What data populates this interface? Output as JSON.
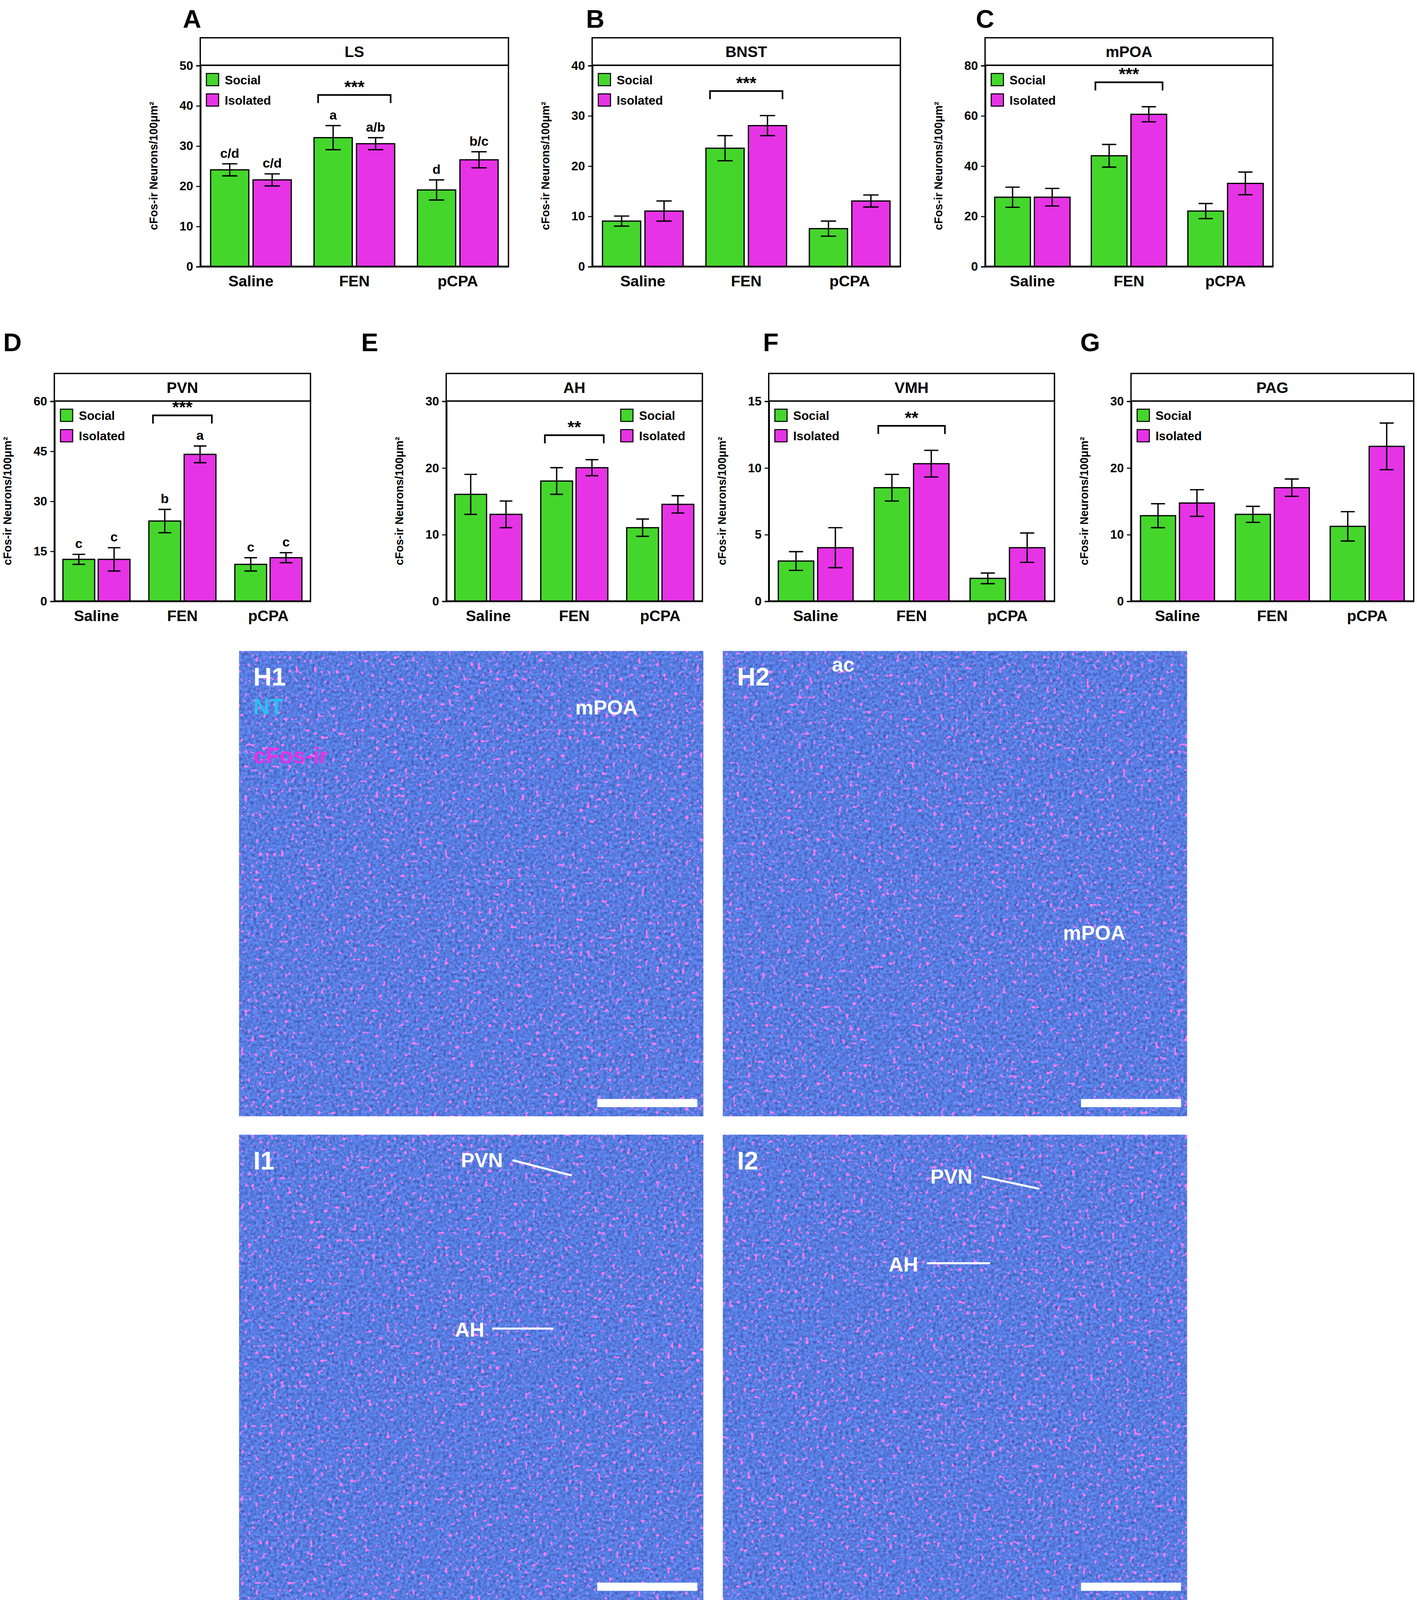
{
  "chart_data": [
    {
      "type": "bar",
      "panel": "A",
      "title": "LS",
      "y_label": "cFos-ir Neurons/100μm²",
      "categories": [
        "Saline",
        "FEN",
        "pCPA"
      ],
      "ylim": [
        0,
        50
      ],
      "yticks": [
        0,
        10,
        20,
        30,
        40,
        50
      ],
      "legend": "upper left",
      "series": [
        {
          "name": "Social",
          "color": "#45d62c",
          "values": [
            24,
            32,
            19
          ],
          "errors": [
            1.5,
            3,
            2.5
          ],
          "letters": [
            "c/d",
            "a",
            "d"
          ]
        },
        {
          "name": "Isolated",
          "color": "#e733e6",
          "values": [
            21.5,
            30.5,
            26.5
          ],
          "errors": [
            1.5,
            1.5,
            2
          ],
          "letters": [
            "c/d",
            "a/b",
            "b/c"
          ]
        }
      ],
      "annotations": [
        {
          "text": "***",
          "category": "FEN"
        }
      ]
    },
    {
      "type": "bar",
      "panel": "B",
      "title": "BNST",
      "y_label": "cFos-ir Neurons/100μm²",
      "categories": [
        "Saline",
        "FEN",
        "pCPA"
      ],
      "ylim": [
        0,
        40
      ],
      "yticks": [
        0,
        10,
        20,
        30,
        40
      ],
      "legend": "upper left",
      "series": [
        {
          "name": "Social",
          "color": "#45d62c",
          "values": [
            9,
            23.5,
            7.5
          ],
          "errors": [
            1,
            2.5,
            1.5
          ]
        },
        {
          "name": "Isolated",
          "color": "#e733e6",
          "values": [
            11,
            28,
            13
          ],
          "errors": [
            2,
            2,
            1.2
          ]
        }
      ],
      "annotations": [
        {
          "text": "***",
          "category": "FEN"
        }
      ]
    },
    {
      "type": "bar",
      "panel": "C",
      "title": "mPOA",
      "y_label": "cFos-ir Neurons/100μm²",
      "categories": [
        "Saline",
        "FEN",
        "pCPA"
      ],
      "ylim": [
        0,
        80
      ],
      "yticks": [
        0,
        20,
        40,
        60,
        80
      ],
      "legend": "upper left",
      "series": [
        {
          "name": "Social",
          "color": "#45d62c",
          "values": [
            27.5,
            44,
            22
          ],
          "errors": [
            4,
            4.5,
            3
          ]
        },
        {
          "name": "Isolated",
          "color": "#e733e6",
          "values": [
            27.5,
            60.5,
            33
          ],
          "errors": [
            3.5,
            3,
            4.5
          ]
        }
      ],
      "annotations": [
        {
          "text": "***",
          "category": "FEN"
        }
      ]
    },
    {
      "type": "bar",
      "panel": "D",
      "title": "PVN",
      "y_label": "cFos-ir Neurons/100μm²",
      "categories": [
        "Saline",
        "FEN",
        "pCPA"
      ],
      "ylim": [
        0,
        60
      ],
      "yticks": [
        0,
        15,
        30,
        45,
        60
      ],
      "legend": "upper left",
      "series": [
        {
          "name": "Social",
          "color": "#45d62c",
          "values": [
            12.5,
            24,
            11
          ],
          "errors": [
            1.5,
            3.5,
            2
          ],
          "letters": [
            "c",
            "b",
            "c"
          ]
        },
        {
          "name": "Isolated",
          "color": "#e733e6",
          "values": [
            12.5,
            44,
            13
          ],
          "errors": [
            3.5,
            2.5,
            1.5
          ],
          "letters": [
            "c",
            "a",
            "c"
          ]
        }
      ],
      "annotations": [
        {
          "text": "***",
          "category": "FEN"
        }
      ]
    },
    {
      "type": "bar",
      "panel": "E",
      "title": "AH",
      "y_label": "cFos-ir Neurons/100μm²",
      "categories": [
        "Saline",
        "FEN",
        "pCPA"
      ],
      "ylim": [
        0,
        30
      ],
      "yticks": [
        0,
        10,
        20,
        30
      ],
      "legend": "upper right",
      "series": [
        {
          "name": "Social",
          "color": "#45d62c",
          "values": [
            16,
            18,
            11
          ],
          "errors": [
            3,
            2,
            1.3
          ]
        },
        {
          "name": "Isolated",
          "color": "#e733e6",
          "values": [
            13,
            20,
            14.5
          ],
          "errors": [
            2,
            1.2,
            1.3
          ]
        }
      ],
      "annotations": [
        {
          "text": "**",
          "category": "FEN"
        }
      ]
    },
    {
      "type": "bar",
      "panel": "F",
      "title": "VMH",
      "y_label": "cFos-ir Neurons/100μm²",
      "categories": [
        "Saline",
        "FEN",
        "pCPA"
      ],
      "ylim": [
        0,
        15
      ],
      "yticks": [
        0,
        5,
        10,
        15
      ],
      "legend": "upper left",
      "series": [
        {
          "name": "Social",
          "color": "#45d62c",
          "values": [
            3,
            8.5,
            1.7
          ],
          "errors": [
            0.7,
            1,
            0.4
          ]
        },
        {
          "name": "Isolated",
          "color": "#e733e6",
          "values": [
            4,
            10.3,
            4
          ],
          "errors": [
            1.5,
            1,
            1.1
          ]
        }
      ],
      "annotations": [
        {
          "text": "**",
          "category": "FEN"
        }
      ]
    },
    {
      "type": "bar",
      "panel": "G",
      "title": "PAG",
      "y_label": "cFos-ir Neurons/100μm²",
      "categories": [
        "Saline",
        "FEN",
        "pCPA"
      ],
      "ylim": [
        0,
        30
      ],
      "yticks": [
        0,
        10,
        20,
        30
      ],
      "legend": "upper left",
      "series": [
        {
          "name": "Social",
          "color": "#45d62c",
          "values": [
            12.8,
            13,
            11.2
          ],
          "errors": [
            1.8,
            1.2,
            2.2
          ]
        },
        {
          "name": "Isolated",
          "color": "#e733e6",
          "values": [
            14.7,
            17,
            23.2
          ],
          "errors": [
            2,
            1.3,
            3.5
          ]
        }
      ],
      "annotations": []
    }
  ],
  "images": [
    {
      "panel": "H1",
      "labels": [
        {
          "text": "NT",
          "color": "#2cc0ee"
        },
        {
          "text": "cFos-ir",
          "color": "#e733e6"
        },
        {
          "text": "mPOA",
          "color": "#ffffff"
        }
      ]
    },
    {
      "panel": "H2",
      "labels": [
        {
          "text": "ac",
          "color": "#ffffff"
        },
        {
          "text": "mPOA",
          "color": "#ffffff"
        }
      ]
    },
    {
      "panel": "I1",
      "labels": [
        {
          "text": "PVN",
          "color": "#ffffff"
        },
        {
          "text": "AH",
          "color": "#ffffff"
        }
      ]
    },
    {
      "panel": "I2",
      "labels": [
        {
          "text": "PVN",
          "color": "#ffffff"
        },
        {
          "text": "AH",
          "color": "#ffffff"
        }
      ]
    }
  ]
}
